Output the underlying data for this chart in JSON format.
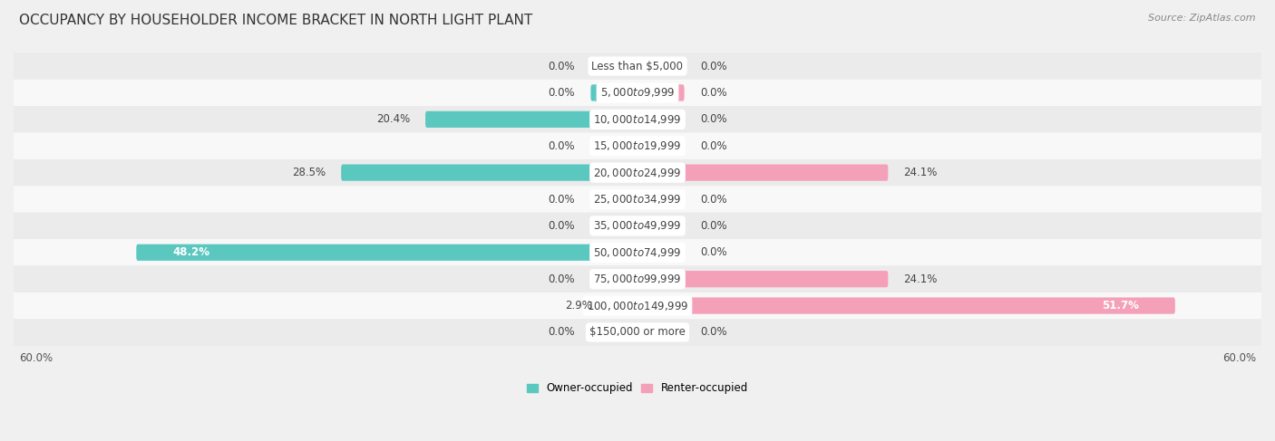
{
  "title": "OCCUPANCY BY HOUSEHOLDER INCOME BRACKET IN NORTH LIGHT PLANT",
  "source": "Source: ZipAtlas.com",
  "categories": [
    "Less than $5,000",
    "$5,000 to $9,999",
    "$10,000 to $14,999",
    "$15,000 to $19,999",
    "$20,000 to $24,999",
    "$25,000 to $34,999",
    "$35,000 to $49,999",
    "$50,000 to $74,999",
    "$75,000 to $99,999",
    "$100,000 to $149,999",
    "$150,000 or more"
  ],
  "owner_values": [
    0.0,
    0.0,
    20.4,
    0.0,
    28.5,
    0.0,
    0.0,
    48.2,
    0.0,
    2.9,
    0.0
  ],
  "renter_values": [
    0.0,
    0.0,
    0.0,
    0.0,
    24.1,
    0.0,
    0.0,
    0.0,
    24.1,
    51.7,
    0.0
  ],
  "owner_color": "#5BC8C0",
  "renter_color": "#F4A0B8",
  "owner_color_dark": "#3BBAB2",
  "renter_color_dark": "#E8789A",
  "stub_value": 4.5,
  "xlim": 60.0,
  "row_colors": [
    "#ebebeb",
    "#f8f8f8"
  ],
  "background_color": "#f0f0f0",
  "label_fontsize": 8.5,
  "cat_fontsize": 8.5,
  "title_fontsize": 11,
  "source_fontsize": 8,
  "bar_height": 0.62,
  "value_label_color": "#444444",
  "cat_label_color": "#444444",
  "inside_label_color": "#ffffff"
}
